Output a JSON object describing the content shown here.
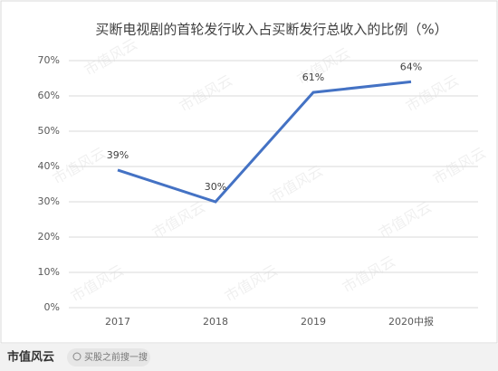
{
  "chart_data": {
    "type": "line",
    "title": "买断电视剧的首轮发行收入占买断发行总收入的比例（%）",
    "categories": [
      "2017",
      "2018",
      "2019",
      "2020中报"
    ],
    "series": [
      {
        "name": "比例",
        "color": "#4472c4",
        "values": [
          39,
          30,
          61,
          64
        ],
        "value_labels": [
          "39%",
          "30%",
          "61%",
          "64%"
        ]
      }
    ],
    "ylim": [
      0,
      70
    ],
    "yticks": [
      {
        "value": 0,
        "label": "0%"
      },
      {
        "value": 10,
        "label": "10%"
      },
      {
        "value": 20,
        "label": "20%"
      },
      {
        "value": 30,
        "label": "30%"
      },
      {
        "value": 40,
        "label": "40%"
      },
      {
        "value": 50,
        "label": "50%"
      },
      {
        "value": 60,
        "label": "60%"
      },
      {
        "value": 70,
        "label": "70%"
      }
    ],
    "grid": true
  },
  "watermark": "市值风云",
  "footer": {
    "brand": "市值风云",
    "search_hint": "买股之前搜一搜"
  }
}
